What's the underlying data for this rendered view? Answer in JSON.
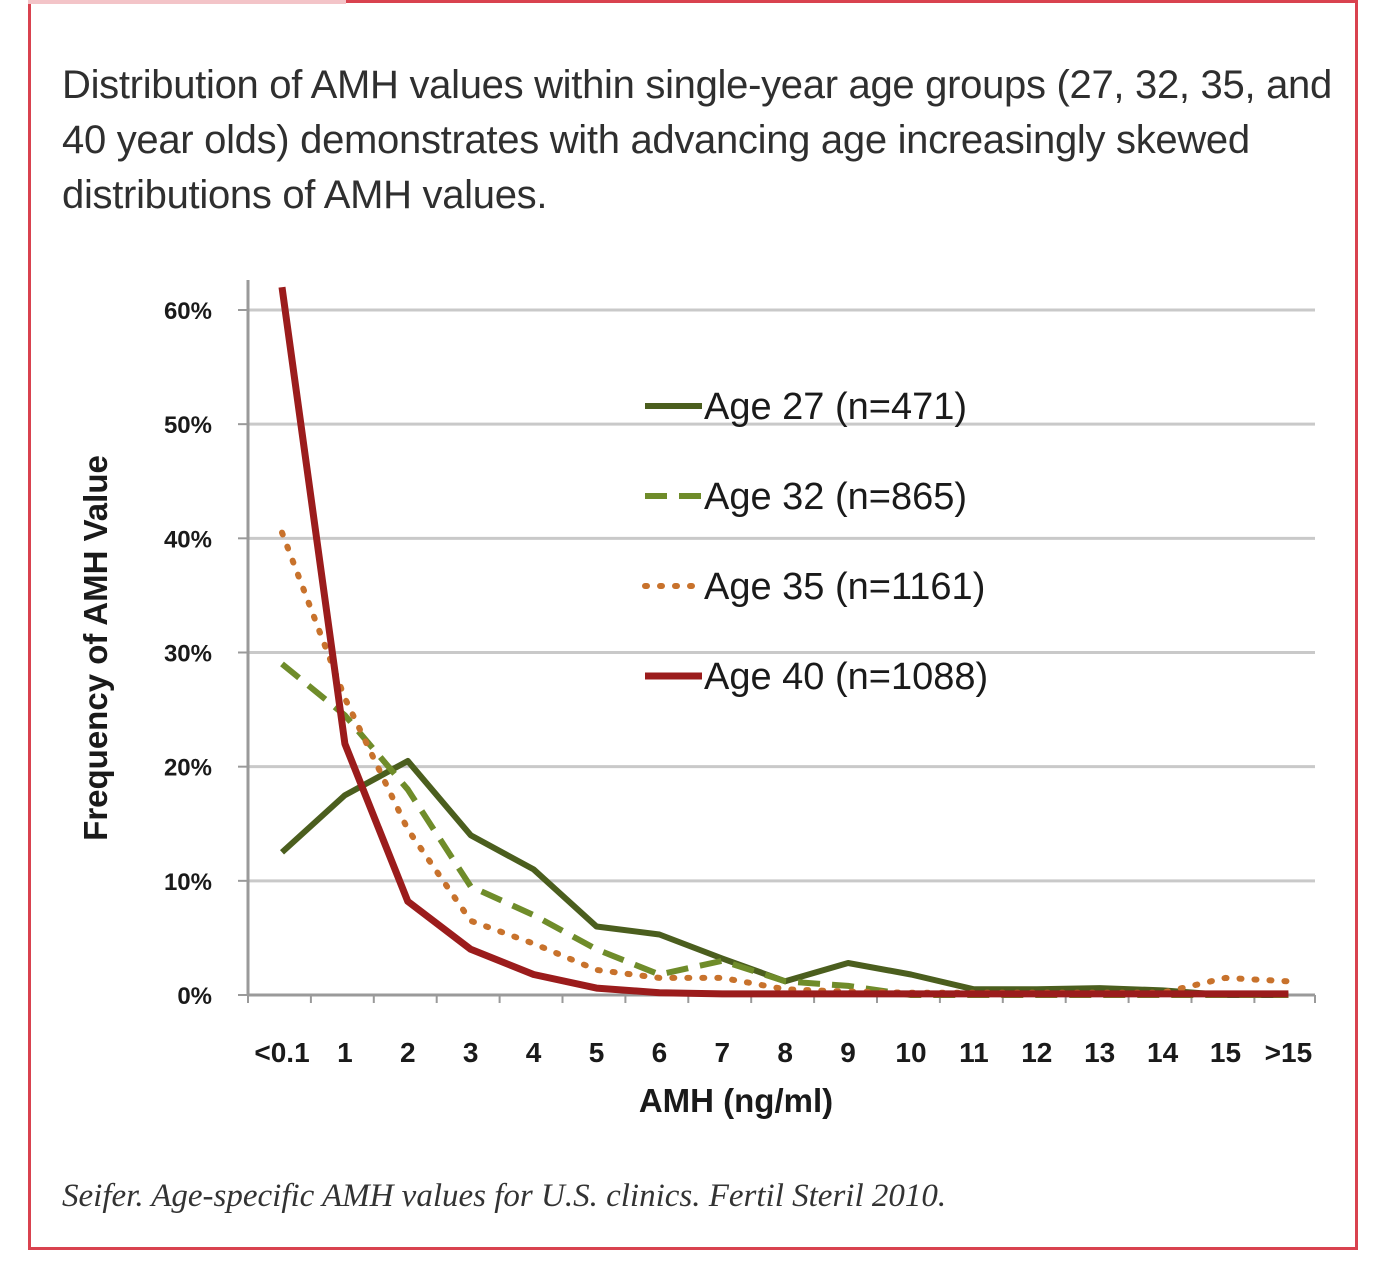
{
  "caption": "Distribution of AMH values within single-year age groups (27, 32, 35, and 40 year olds) demonstrates with advancing age increasingly skewed distributions of AMH values.",
  "citation": "Seifer. Age-specific AMH values for U.S. clinics. Fertil Steril 2010.",
  "colors": {
    "frame": "#d9424f",
    "age27": "#4b5e1e",
    "age32": "#6f8c2a",
    "age35": "#c8722c",
    "age40": "#9b1c1c",
    "grid": "#c9c9c9"
  },
  "chart_data": {
    "type": "line",
    "title": "",
    "xlabel": "AMH (ng/ml)",
    "ylabel": "Frequency of AMH Value",
    "categories": [
      "<0.1",
      "1",
      "2",
      "3",
      "4",
      "5",
      "6",
      "7",
      "8",
      "9",
      "10",
      "11",
      "12",
      "13",
      "14",
      "15",
      ">15"
    ],
    "ylim": [
      0,
      60
    ],
    "yticks": [
      "0%",
      "10%",
      "20%",
      "30%",
      "40%",
      "50%",
      "60%"
    ],
    "grid": true,
    "legend_position": "center-right",
    "series": [
      {
        "name": "Age 27 (n=471)",
        "style": "solid",
        "values": [
          12.5,
          17.5,
          20.5,
          14,
          11,
          6,
          5.3,
          3.2,
          1.2,
          2.8,
          1.8,
          0.5,
          0.5,
          0.6,
          0.4,
          0,
          0
        ]
      },
      {
        "name": "Age 32 (n=865)",
        "style": "dashed",
        "values": [
          29,
          24.5,
          18,
          9.5,
          7,
          4,
          1.8,
          3,
          1.2,
          0.8,
          0,
          0,
          0,
          0,
          0,
          0,
          0
        ]
      },
      {
        "name": "Age 35 (n=1161)",
        "style": "dotted",
        "values": [
          40.5,
          26,
          14.5,
          6.5,
          4.5,
          2.2,
          1.5,
          1.5,
          0.5,
          0.3,
          0.2,
          0.2,
          0.2,
          0.2,
          0.2,
          1.5,
          1.2
        ]
      },
      {
        "name": "Age 40 (n=1088)",
        "style": "solid-thick",
        "values": [
          62,
          22,
          8.2,
          4,
          1.8,
          0.6,
          0.2,
          0.1,
          0.1,
          0.1,
          0.1,
          0.1,
          0.1,
          0.1,
          0.1,
          0.1,
          0.1
        ]
      }
    ]
  }
}
